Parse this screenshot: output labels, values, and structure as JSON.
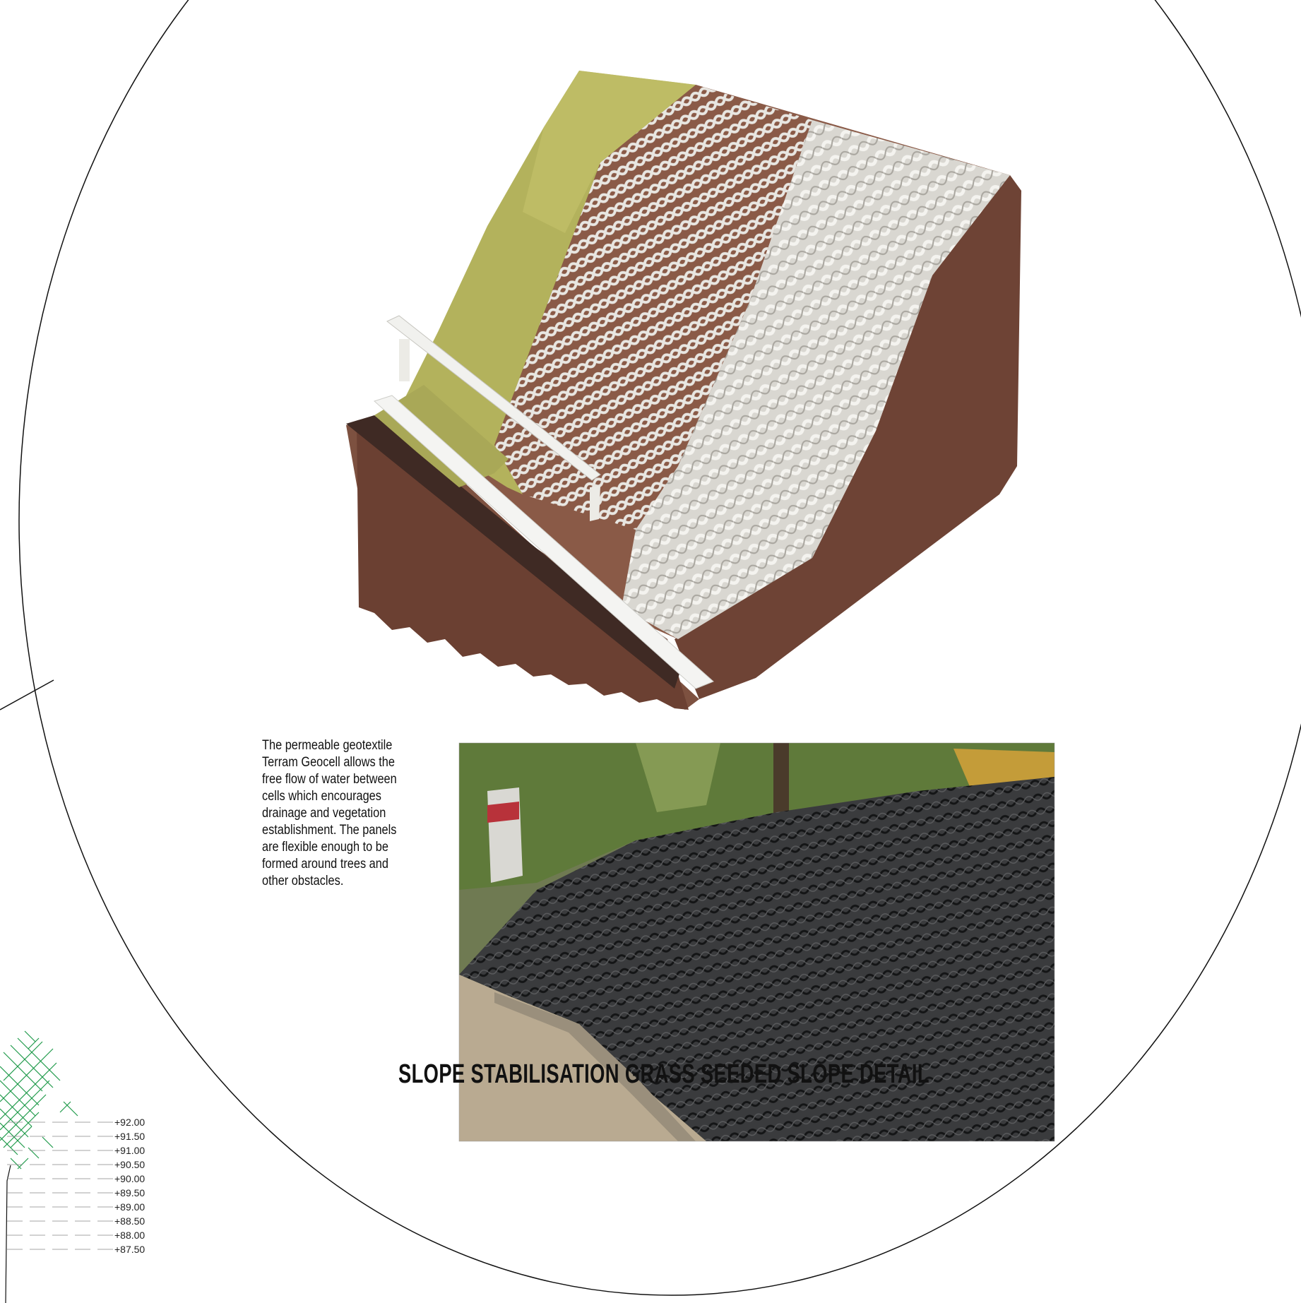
{
  "caption": {
    "lines": [
      "The permeable geotextile",
      "Terram Geocell allows the",
      "free flow of water between",
      "cells which encourages",
      "drainage and vegetation",
      "establishment. The panels",
      "are flexible enough to be",
      "formed around trees and",
      "other obstacles."
    ]
  },
  "detail_title": "SLOPE STABILISATION GRASS SEEDED SLOPE DETAIL",
  "levels": [
    "+92.00",
    "+91.50",
    "+91.00",
    "+90.50",
    "+90.00",
    "+89.50",
    "+89.00",
    "+88.50",
    "+88.00",
    "+87.50"
  ],
  "colors": {
    "grass": "#b3b25c",
    "soil": "#8a5a47",
    "soil_dark": "#5e3a2e",
    "geocell": "#e2e0da",
    "kerb": "#ffffff",
    "photo_cells": "#2a2c2e",
    "tree_hatch": "#1f9a4a"
  }
}
